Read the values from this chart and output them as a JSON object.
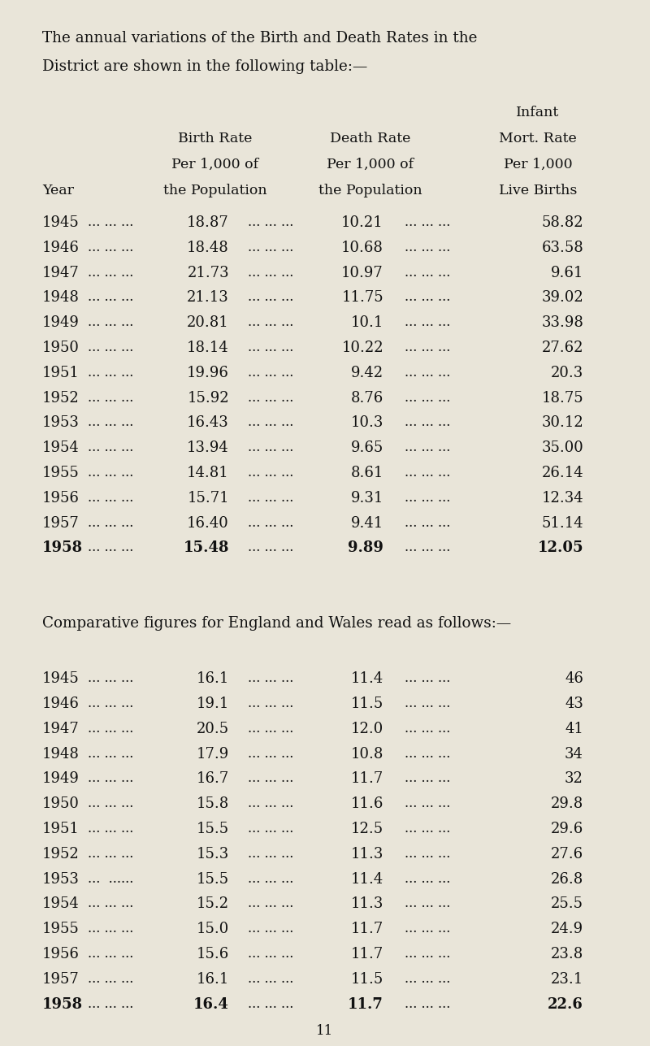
{
  "intro_line1": "The annual variations of the Birth and Death Rates in the",
  "intro_line2": "District are shown in the following table:—",
  "header_year": "Year",
  "header_birth_l1": "Birth Rate",
  "header_birth_l2": "Per 1,000 of",
  "header_birth_l3": "the Population",
  "header_death_l1": "Death Rate",
  "header_death_l2": "Per 1,000 of",
  "header_death_l3": "the Population",
  "header_infant_l0": "Infant",
  "header_infant_l1": "Mort. Rate",
  "header_infant_l2": "Per 1,000",
  "header_infant_l3": "Live Births",
  "district_data": [
    {
      "year": "1945",
      "birth": "18.87",
      "death": "10.21",
      "infant": "58.82",
      "bold": false
    },
    {
      "year": "1946",
      "birth": "18.48",
      "death": "10.68",
      "infant": "63.58",
      "bold": false
    },
    {
      "year": "1947",
      "birth": "21.73",
      "death": "10.97",
      "infant": "9.61",
      "bold": false
    },
    {
      "year": "1948",
      "birth": "21.13",
      "death": "11.75",
      "infant": "39.02",
      "bold": false
    },
    {
      "year": "1949",
      "birth": "20.81",
      "death": "10.1",
      "infant": "33.98",
      "bold": false
    },
    {
      "year": "1950",
      "birth": "18.14",
      "death": "10.22",
      "infant": "27.62",
      "bold": false
    },
    {
      "year": "1951",
      "birth": "19.96",
      "death": "9.42",
      "infant": "20.3",
      "bold": false
    },
    {
      "year": "1952",
      "birth": "15.92",
      "death": "8.76",
      "infant": "18.75",
      "bold": false
    },
    {
      "year": "1953",
      "birth": "16.43",
      "death": "10.3",
      "infant": "30.12",
      "bold": false
    },
    {
      "year": "1954",
      "birth": "13.94",
      "death": "9.65",
      "infant": "35.00",
      "bold": false
    },
    {
      "year": "1955",
      "birth": "14.81",
      "death": "8.61",
      "infant": "26.14",
      "bold": false
    },
    {
      "year": "1956",
      "birth": "15.71",
      "death": "9.31",
      "infant": "12.34",
      "bold": false
    },
    {
      "year": "1957",
      "birth": "16.40",
      "death": "9.41",
      "infant": "51.14",
      "bold": false
    },
    {
      "year": "1958",
      "birth": "15.48",
      "death": "9.89",
      "infant": "12.05",
      "bold": true
    }
  ],
  "comparative_line": "Comparative figures for England and Wales read as follows:—",
  "england_data": [
    {
      "year": "1945",
      "birth": "16.1",
      "death": "11.4",
      "infant": "46",
      "bold": false,
      "dots1": "... ... ..."
    },
    {
      "year": "1946",
      "birth": "19.1",
      "death": "11.5",
      "infant": "43",
      "bold": false,
      "dots1": "... ... ..."
    },
    {
      "year": "1947",
      "birth": "20.5",
      "death": "12.0",
      "infant": "41",
      "bold": false,
      "dots1": "... ... ..."
    },
    {
      "year": "1948",
      "birth": "17.9",
      "death": "10.8",
      "infant": "34",
      "bold": false,
      "dots1": "... ... ..."
    },
    {
      "year": "1949",
      "birth": "16.7",
      "death": "11.7",
      "infant": "32",
      "bold": false,
      "dots1": "... ... ..."
    },
    {
      "year": "1950",
      "birth": "15.8",
      "death": "11.6",
      "infant": "29.8",
      "bold": false,
      "dots1": "... ... ..."
    },
    {
      "year": "1951",
      "birth": "15.5",
      "death": "12.5",
      "infant": "29.6",
      "bold": false,
      "dots1": "... ... ..."
    },
    {
      "year": "1952",
      "birth": "15.3",
      "death": "11.3",
      "infant": "27.6",
      "bold": false,
      "dots1": "... ... ..."
    },
    {
      "year": "1953",
      "birth": "15.5",
      "death": "11.4",
      "infant": "26.8",
      "bold": false,
      "dots1": "...  ......"
    },
    {
      "year": "1954",
      "birth": "15.2",
      "death": "11.3",
      "infant": "25.5",
      "bold": false,
      "dots1": "... ... ..."
    },
    {
      "year": "1955",
      "birth": "15.0",
      "death": "11.7",
      "infant": "24.9",
      "bold": false,
      "dots1": "... ... ..."
    },
    {
      "year": "1956",
      "birth": "15.6",
      "death": "11.7",
      "infant": "23.8",
      "bold": false,
      "dots1": "... ... ..."
    },
    {
      "year": "1957",
      "birth": "16.1",
      "death": "11.5",
      "infant": "23.1",
      "bold": false,
      "dots1": "... ... ..."
    },
    {
      "year": "1958",
      "birth": "16.4",
      "death": "11.7",
      "infant": "22.6",
      "bold": true,
      "dots1": "... ... ..."
    }
  ],
  "page_number": "11",
  "bg_color": "#e9e5d9",
  "text_color": "#111111",
  "fig_width": 8.0,
  "fig_height": 12.87,
  "dpi": 100
}
